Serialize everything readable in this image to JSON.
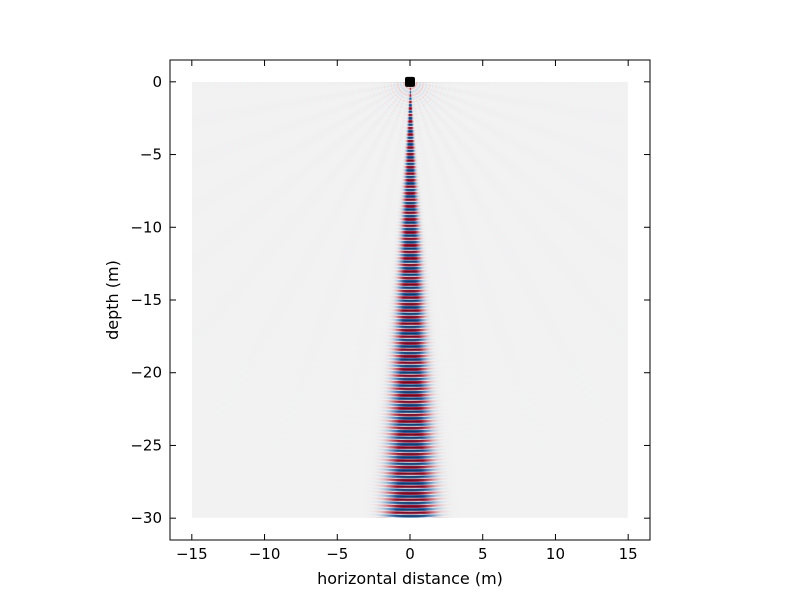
{
  "chart_data": {
    "type": "heatmap",
    "title": "",
    "xlabel": "horizontal distance (m)",
    "ylabel": "depth (m)",
    "xlim": [
      -16.5,
      16.5
    ],
    "ylim": [
      -31.5,
      1.5
    ],
    "field_extent": {
      "x": [
        -15,
        15
      ],
      "y": [
        -30,
        0
      ]
    },
    "xticks": [
      -15,
      -10,
      -5,
      0,
      5,
      10,
      15
    ],
    "xtick_labels": [
      "−15",
      "−10",
      "−5",
      "0",
      "5",
      "10",
      "15"
    ],
    "yticks": [
      0,
      -5,
      -10,
      -15,
      -20,
      -25,
      -30
    ],
    "ytick_labels": [
      "0",
      "−5",
      "−10",
      "−15",
      "−20",
      "−25",
      "−30"
    ],
    "source_marker": {
      "x": 0,
      "y": 0
    },
    "colormap": [
      "#053061",
      "#2166ac",
      "#f7f7f7",
      "#b2182b",
      "#67001f"
    ],
    "grid": false
  }
}
